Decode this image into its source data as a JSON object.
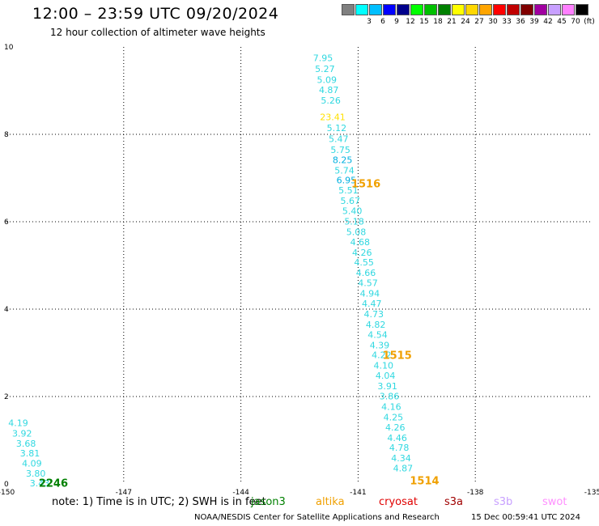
{
  "header": {
    "title": "12:00 – 23:59 UTC 09/20/2024",
    "subtitle": "12 hour collection of altimeter wave heights"
  },
  "scale": {
    "swatches": [
      {
        "color": "#808080",
        "label": ""
      },
      {
        "color": "#00ffff",
        "label": "3"
      },
      {
        "color": "#00bfff",
        "label": "6"
      },
      {
        "color": "#0000ff",
        "label": "9"
      },
      {
        "color": "#00008b",
        "label": "12"
      },
      {
        "color": "#00ff00",
        "label": "15"
      },
      {
        "color": "#00c000",
        "label": "18"
      },
      {
        "color": "#008000",
        "label": "21"
      },
      {
        "color": "#ffff00",
        "label": "24"
      },
      {
        "color": "#ffd700",
        "label": "27"
      },
      {
        "color": "#ffa500",
        "label": "30"
      },
      {
        "color": "#ff0000",
        "label": "33"
      },
      {
        "color": "#c00000",
        "label": "36"
      },
      {
        "color": "#800000",
        "label": "39"
      },
      {
        "color": "#a000a0",
        "label": "42"
      },
      {
        "color": "#c8a0ff",
        "label": "45"
      },
      {
        "color": "#ff80ff",
        "label": "70"
      },
      {
        "color": "#000000",
        "label": "(ft)"
      }
    ]
  },
  "map": {
    "x_ticks": [
      "-150",
      "-147",
      "-144",
      "-141",
      "-138",
      "-135"
    ],
    "y_ticks": [
      "10",
      "8",
      "6",
      "4",
      "2",
      "0"
    ],
    "track_annotations": [
      {
        "text": "1516",
        "lon": -140.8,
        "lat": 6.88,
        "color": "#f0a000"
      },
      {
        "text": "1515",
        "lon": -140.0,
        "lat": 2.95,
        "color": "#f0a000"
      },
      {
        "text": "1514",
        "lon": -139.3,
        "lat": 0.08,
        "color": "#f0a000"
      },
      {
        "text": "2246",
        "lon": -148.8,
        "lat": 0.03,
        "color": "#008000"
      }
    ],
    "observations": [
      {
        "v": "7.95",
        "lon": -141.9,
        "lat": 9.75,
        "color": "#30d8e0"
      },
      {
        "v": "5.27",
        "lon": -141.85,
        "lat": 9.5,
        "color": "#30d8e0"
      },
      {
        "v": "5.09",
        "lon": -141.8,
        "lat": 9.25,
        "color": "#30d8e0"
      },
      {
        "v": "4.87",
        "lon": -141.75,
        "lat": 9.02,
        "color": "#30d8e0"
      },
      {
        "v": "5.26",
        "lon": -141.7,
        "lat": 8.78,
        "color": "#30d8e0"
      },
      {
        "v": "23.41",
        "lon": -141.65,
        "lat": 8.4,
        "color": "#ffe000"
      },
      {
        "v": "5.12",
        "lon": -141.55,
        "lat": 8.15,
        "color": "#30d8e0"
      },
      {
        "v": "5.47",
        "lon": -141.5,
        "lat": 7.9,
        "color": "#30d8e0"
      },
      {
        "v": "5.75",
        "lon": -141.45,
        "lat": 7.65,
        "color": "#30d8e0"
      },
      {
        "v": "8.25",
        "lon": -141.4,
        "lat": 7.42,
        "color": "#00b0e0"
      },
      {
        "v": "5.74",
        "lon": -141.35,
        "lat": 7.18,
        "color": "#30d8e0"
      },
      {
        "v": "6.95",
        "lon": -141.3,
        "lat": 6.95,
        "color": "#00b0e0"
      },
      {
        "v": "5.51",
        "lon": -141.25,
        "lat": 6.72,
        "color": "#30d8e0"
      },
      {
        "v": "5.67",
        "lon": -141.2,
        "lat": 6.48,
        "color": "#30d8e0"
      },
      {
        "v": "5.40",
        "lon": -141.15,
        "lat": 6.25,
        "color": "#30d8e0"
      },
      {
        "v": "5.18",
        "lon": -141.1,
        "lat": 6.01,
        "color": "#30d8e0"
      },
      {
        "v": "5.08",
        "lon": -141.05,
        "lat": 5.77,
        "color": "#30d8e0"
      },
      {
        "v": "4.68",
        "lon": -140.95,
        "lat": 5.54,
        "color": "#30d8e0"
      },
      {
        "v": "4.26",
        "lon": -140.9,
        "lat": 5.3,
        "color": "#30d8e0"
      },
      {
        "v": "4.55",
        "lon": -140.85,
        "lat": 5.07,
        "color": "#30d8e0"
      },
      {
        "v": "4.66",
        "lon": -140.8,
        "lat": 4.83,
        "color": "#30d8e0"
      },
      {
        "v": "4.57",
        "lon": -140.75,
        "lat": 4.6,
        "color": "#30d8e0"
      },
      {
        "v": "4.94",
        "lon": -140.7,
        "lat": 4.36,
        "color": "#30d8e0"
      },
      {
        "v": "4.47",
        "lon": -140.65,
        "lat": 4.13,
        "color": "#30d8e0"
      },
      {
        "v": "4.73",
        "lon": -140.6,
        "lat": 3.89,
        "color": "#30d8e0"
      },
      {
        "v": "4.82",
        "lon": -140.55,
        "lat": 3.65,
        "color": "#30d8e0"
      },
      {
        "v": "4.54",
        "lon": -140.5,
        "lat": 3.42,
        "color": "#30d8e0"
      },
      {
        "v": "4.39",
        "lon": -140.45,
        "lat": 3.18,
        "color": "#30d8e0"
      },
      {
        "v": "4.22",
        "lon": -140.4,
        "lat": 2.95,
        "color": "#30d8e0"
      },
      {
        "v": "4.10",
        "lon": -140.35,
        "lat": 2.71,
        "color": "#30d8e0"
      },
      {
        "v": "4.04",
        "lon": -140.3,
        "lat": 2.48,
        "color": "#30d8e0"
      },
      {
        "v": "3.91",
        "lon": -140.25,
        "lat": 2.24,
        "color": "#30d8e0"
      },
      {
        "v": "3.86",
        "lon": -140.2,
        "lat": 2.01,
        "color": "#30d8e0"
      },
      {
        "v": "4.16",
        "lon": -140.15,
        "lat": 1.77,
        "color": "#30d8e0"
      },
      {
        "v": "4.25",
        "lon": -140.1,
        "lat": 1.53,
        "color": "#30d8e0"
      },
      {
        "v": "4.26",
        "lon": -140.05,
        "lat": 1.3,
        "color": "#30d8e0"
      },
      {
        "v": "4.46",
        "lon": -140.0,
        "lat": 1.06,
        "color": "#30d8e0"
      },
      {
        "v": "4.78",
        "lon": -139.95,
        "lat": 0.83,
        "color": "#30d8e0"
      },
      {
        "v": "4.34",
        "lon": -139.9,
        "lat": 0.59,
        "color": "#30d8e0"
      },
      {
        "v": "4.87",
        "lon": -139.85,
        "lat": 0.36,
        "color": "#30d8e0"
      },
      {
        "v": "4.19",
        "lon": -149.7,
        "lat": 1.4,
        "color": "#30d8e0"
      },
      {
        "v": "3.92",
        "lon": -149.6,
        "lat": 1.16,
        "color": "#30d8e0"
      },
      {
        "v": "3.68",
        "lon": -149.5,
        "lat": 0.93,
        "color": "#30d8e0"
      },
      {
        "v": "3.81",
        "lon": -149.4,
        "lat": 0.7,
        "color": "#30d8e0"
      },
      {
        "v": "4.09",
        "lon": -149.35,
        "lat": 0.47,
        "color": "#30d8e0"
      },
      {
        "v": "3.80",
        "lon": -149.25,
        "lat": 0.24,
        "color": "#30d8e0"
      },
      {
        "v": "3.43",
        "lon": -149.15,
        "lat": 0.02,
        "color": "#30d8e0"
      }
    ]
  },
  "legend": {
    "note": "note:  1) Time is in UTC; 2) SWH is in feet",
    "sats": [
      {
        "label": "jason3",
        "color": "#008000"
      },
      {
        "label": "altika",
        "color": "#f0a000"
      },
      {
        "label": "cryosat",
        "color": "#e00000"
      },
      {
        "label": "s3a",
        "color": "#a00000"
      },
      {
        "label": "s3b",
        "color": "#c8a0ff"
      },
      {
        "label": "swot",
        "color": "#ff90ff"
      }
    ]
  },
  "footer": {
    "credit": "NOAA/NESDIS Center for Satellite Applications and Research",
    "timestamp": "15 Dec 00:59:41 UTC 2024"
  }
}
